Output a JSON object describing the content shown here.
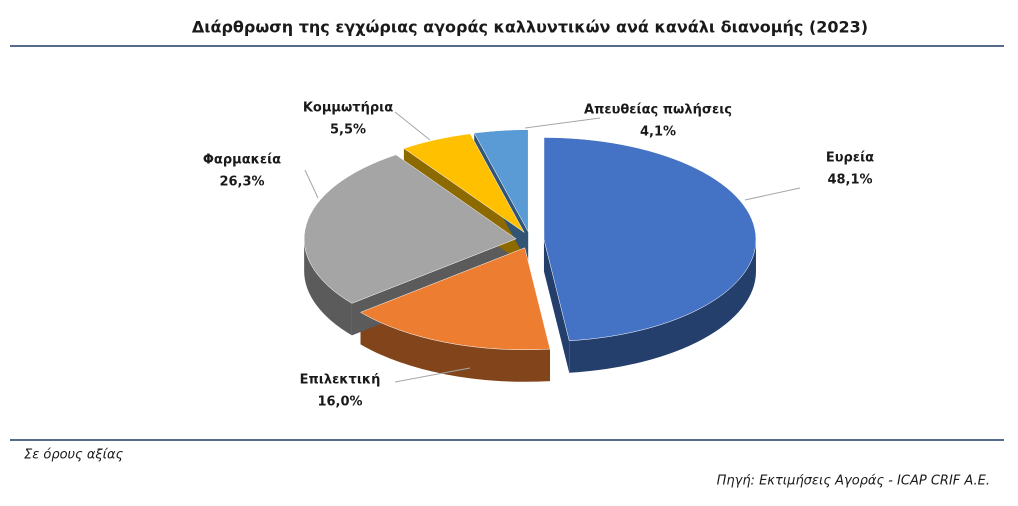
{
  "chart_data": {
    "type": "pie",
    "title": "Διάρθρωση της εγχώριας αγοράς καλλυντικών ανά κανάλι διανομής (2023)",
    "categories": [
      "Ευρεία",
      "Επιλεκτική",
      "Φαρμακεία",
      "Κομμωτήρια",
      "Απευθείας πωλήσεις"
    ],
    "values": [
      48.1,
      16.0,
      26.3,
      5.5,
      4.1
    ],
    "value_labels": [
      "48,1%",
      "16,0%",
      "26,3%",
      "5,5%",
      "4,1%"
    ],
    "colors": [
      "#4472c4",
      "#ed7d31",
      "#a5a5a5",
      "#ffc000",
      "#5b9bd5"
    ],
    "note": "Σε όρους αξίας",
    "source": "Πηγή: Εκτιμήσεις Αγοράς - ICAP CRIF A.E."
  }
}
